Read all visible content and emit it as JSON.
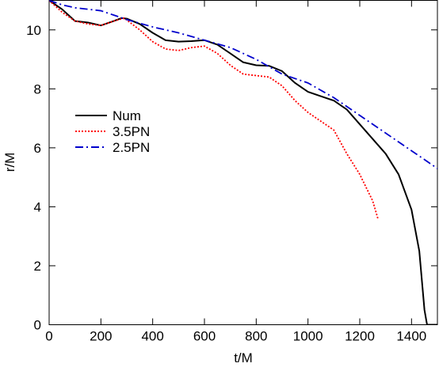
{
  "chart_data": {
    "type": "line",
    "xlabel": "t/M",
    "ylabel": "r/M",
    "xlim": [
      0,
      1500
    ],
    "ylim": [
      0,
      11
    ],
    "xticks": [
      0,
      200,
      400,
      600,
      800,
      1000,
      1200,
      1400
    ],
    "yticks": [
      0,
      2,
      4,
      6,
      8,
      10
    ],
    "legend": "left",
    "series": [
      {
        "name": "Num",
        "color": "#000000",
        "style": "solid",
        "x": [
          0,
          50,
          100,
          150,
          200,
          250,
          280,
          300,
          350,
          400,
          450,
          500,
          550,
          600,
          650,
          700,
          750,
          800,
          850,
          900,
          950,
          1000,
          1050,
          1100,
          1150,
          1200,
          1250,
          1300,
          1350,
          1400,
          1430,
          1450,
          1460,
          1500
        ],
        "values": [
          11,
          10.7,
          10.3,
          10.25,
          10.15,
          10.3,
          10.4,
          10.38,
          10.2,
          9.9,
          9.65,
          9.6,
          9.62,
          9.65,
          9.5,
          9.2,
          8.9,
          8.8,
          8.78,
          8.6,
          8.2,
          7.9,
          7.75,
          7.6,
          7.3,
          6.8,
          6.3,
          5.8,
          5.1,
          3.9,
          2.5,
          0.5,
          0,
          0
        ]
      },
      {
        "name": "3.5PN",
        "color": "#ff0000",
        "style": "dotted",
        "x": [
          0,
          50,
          100,
          150,
          200,
          250,
          290,
          350,
          400,
          450,
          500,
          550,
          600,
          650,
          700,
          750,
          800,
          850,
          900,
          950,
          1000,
          1050,
          1100,
          1150,
          1200,
          1250,
          1270
        ],
        "values": [
          11,
          10.6,
          10.3,
          10.2,
          10.15,
          10.3,
          10.4,
          10.0,
          9.6,
          9.35,
          9.3,
          9.4,
          9.45,
          9.2,
          8.8,
          8.5,
          8.45,
          8.4,
          8.1,
          7.6,
          7.2,
          6.9,
          6.6,
          5.8,
          5.1,
          4.2,
          3.6
        ]
      },
      {
        "name": "2.5PN",
        "color": "#0000cc",
        "style": "dashdot",
        "x": [
          0,
          50,
          100,
          200,
          250,
          300,
          400,
          500,
          600,
          700,
          800,
          900,
          1000,
          1100,
          1200,
          1300,
          1400,
          1500
        ],
        "values": [
          11,
          10.85,
          10.75,
          10.65,
          10.5,
          10.35,
          10.1,
          9.9,
          9.65,
          9.4,
          9.0,
          8.5,
          8.2,
          7.7,
          7.1,
          6.5,
          5.9,
          5.3
        ]
      }
    ]
  }
}
